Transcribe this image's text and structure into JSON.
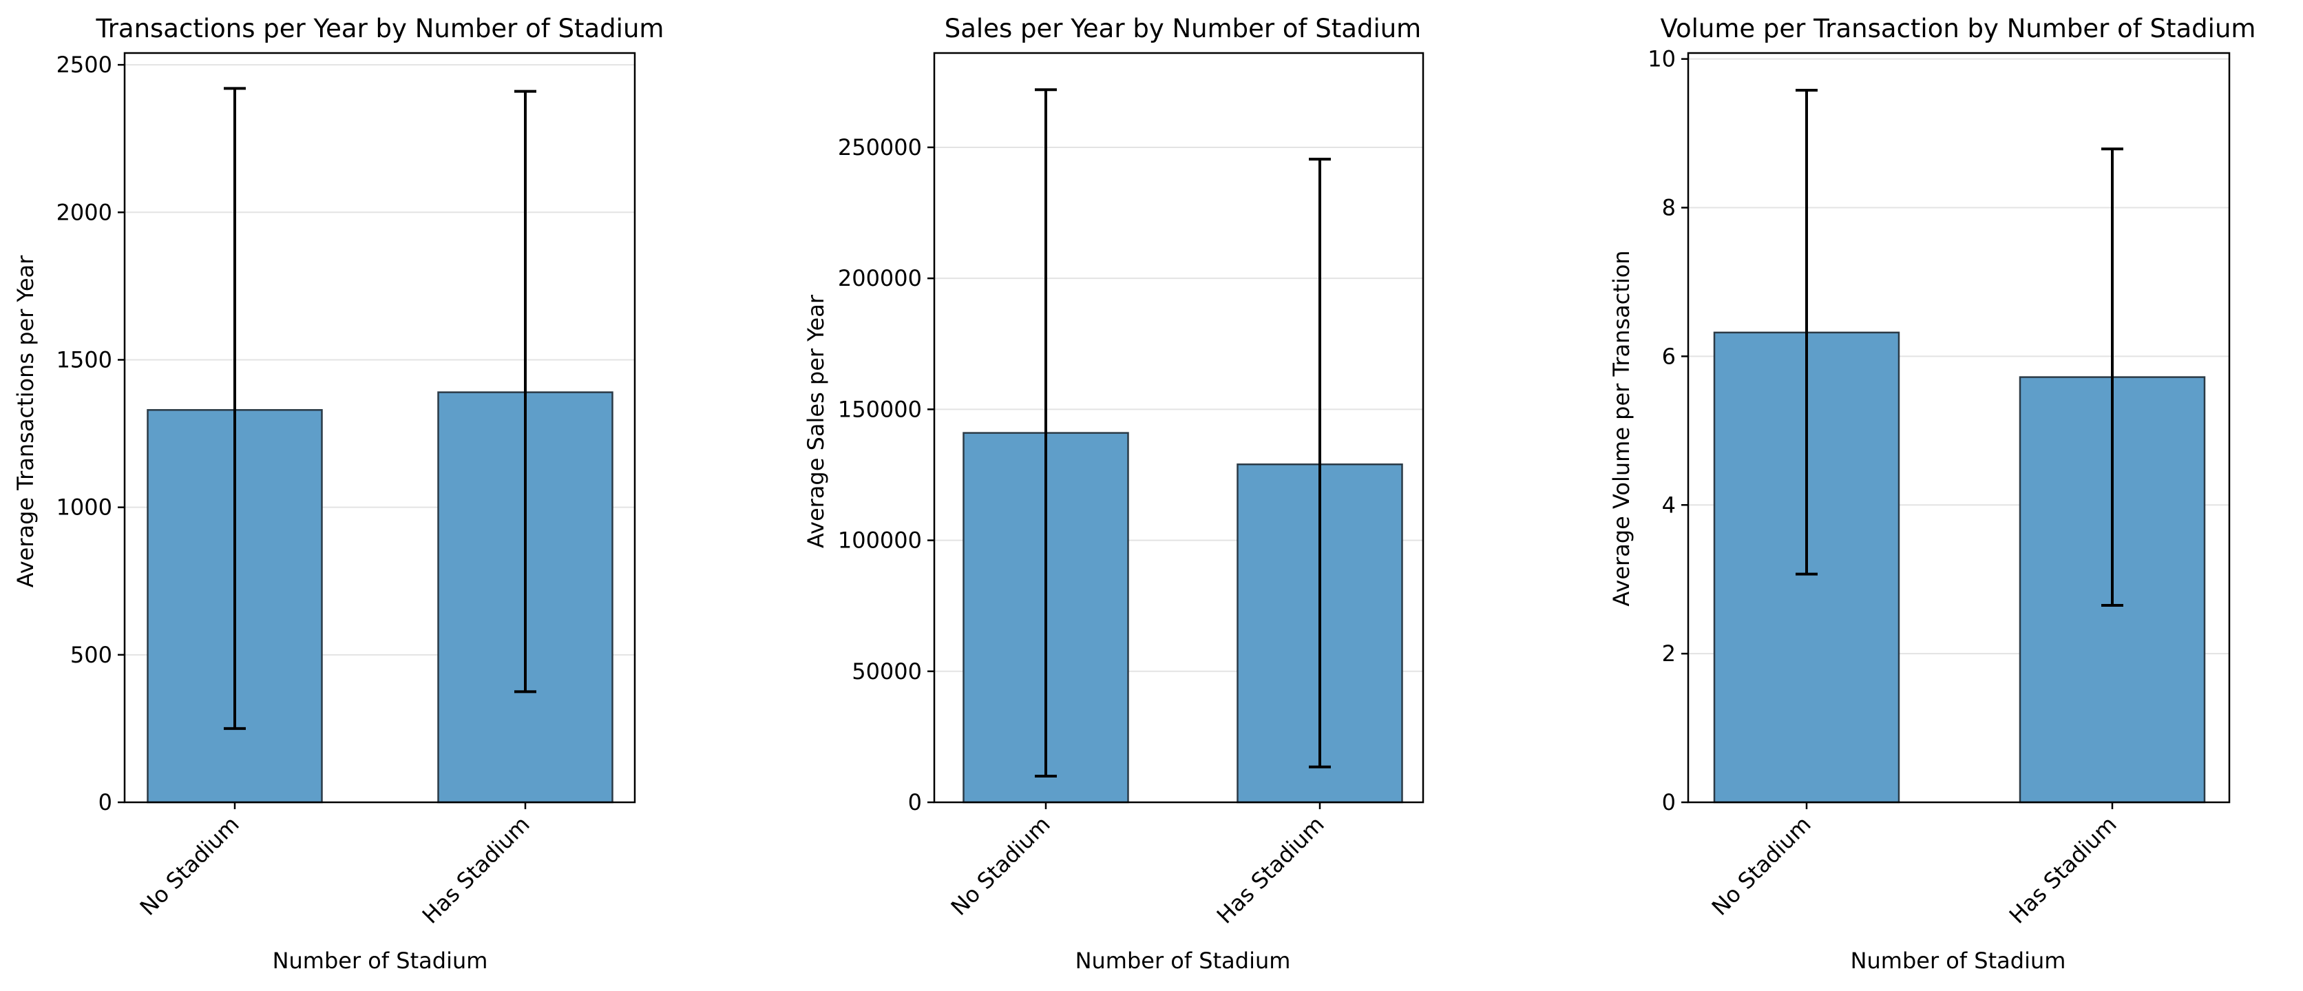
{
  "chart_data": [
    {
      "type": "bar",
      "title": "Transactions per Year by Number of Stadium",
      "xlabel": "Number of Stadium",
      "ylabel": "Average Transactions per Year",
      "categories": [
        "No Stadium",
        "Has Stadium"
      ],
      "values": [
        1330,
        1390
      ],
      "error_low": [
        250,
        375
      ],
      "error_high": [
        2420,
        2410
      ],
      "ylim": [
        0,
        2540
      ],
      "yticks": [
        0,
        500,
        1000,
        1500,
        2000,
        2500
      ],
      "ytick_labels": [
        "0",
        "500",
        "1000",
        "1500",
        "2000",
        "2500"
      ],
      "grid": "y",
      "bar_color": "#5f9ec9",
      "edge_color": "#2b3a46"
    },
    {
      "type": "bar",
      "title": "Sales per Year by Number of Stadium",
      "xlabel": "Number of Stadium",
      "ylabel": "Average Sales per Year",
      "categories": [
        "No Stadium",
        "Has Stadium"
      ],
      "values": [
        141000,
        129000
      ],
      "error_low": [
        10000,
        13500
      ],
      "error_high": [
        272000,
        245500
      ],
      "ylim": [
        0,
        286000
      ],
      "yticks": [
        0,
        50000,
        100000,
        150000,
        200000,
        250000
      ],
      "ytick_labels": [
        "0",
        "50000",
        "100000",
        "150000",
        "200000",
        "250000"
      ],
      "grid": "y",
      "bar_color": "#5f9ec9",
      "edge_color": "#2b3a46"
    },
    {
      "type": "bar",
      "title": "Volume per Transaction by Number of Stadium",
      "xlabel": "Number of Stadium",
      "ylabel": "Average Volume per Transaction",
      "categories": [
        "No Stadium",
        "Has Stadium"
      ],
      "values": [
        6.32,
        5.72
      ],
      "error_low": [
        3.07,
        2.65
      ],
      "error_high": [
        9.58,
        8.79
      ],
      "ylim": [
        0,
        10.08
      ],
      "yticks": [
        0,
        2,
        4,
        6,
        8,
        10
      ],
      "ytick_labels": [
        "0",
        "2",
        "4",
        "6",
        "8",
        "10"
      ],
      "grid": "y",
      "bar_color": "#5f9ec9",
      "edge_color": "#2b3a46"
    }
  ]
}
